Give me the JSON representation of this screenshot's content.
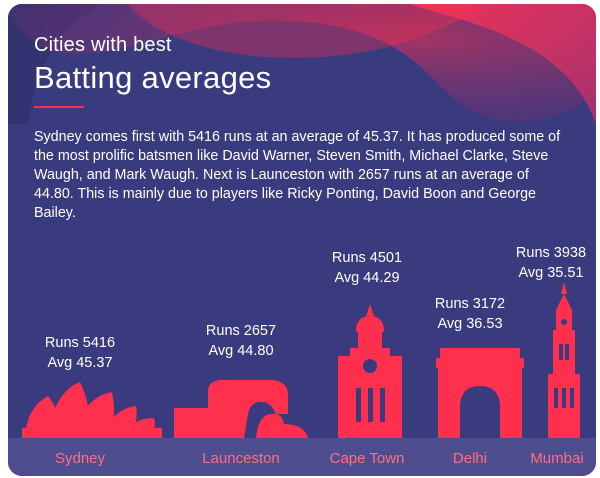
{
  "header": {
    "subtitle": "Cities with best",
    "title": "Batting averages"
  },
  "description": "Sydney comes first with 5416 runs at an average of 45.37. It has produced some of the most prolific batsmen like David Warner, Steven Smith, Michael Clarke, Steve Waugh, and Mark Waugh. Next is Launceston with 2657 runs at an average of 44.80. This is mainly due to players like Ricky Ponting, David Boon and George Bailey.",
  "colors": {
    "background": "#3a3a7e",
    "accent": "#ff2f4e",
    "ground": "#4d4d8f",
    "city_label": "#ff6f7d"
  },
  "chart_data": {
    "type": "bar",
    "title": "Batting averages",
    "categories": [
      "Sydney",
      "Launceston",
      "Cape Town",
      "Delhi",
      "Mumbai"
    ],
    "series": [
      {
        "name": "Runs",
        "values": [
          5416,
          2657,
          4501,
          3172,
          3938
        ]
      },
      {
        "name": "Avg",
        "values": [
          45.37,
          44.8,
          44.29,
          36.53,
          35.51
        ]
      }
    ],
    "labels": [
      {
        "runs": "Runs 5416",
        "avg": "Avg 45.37"
      },
      {
        "runs": "Runs 2657",
        "avg": "Avg 44.80"
      },
      {
        "runs": "Runs 4501",
        "avg": "Avg 44.29"
      },
      {
        "runs": "Runs 3172",
        "avg": "Avg 36.53"
      },
      {
        "runs": "Runs 3938",
        "avg": "Avg 35.51"
      }
    ],
    "icons": [
      "sydney-opera-house-icon",
      "launceston-landmark-icon",
      "cape-town-city-hall-icon",
      "india-gate-icon",
      "rajabai-clock-tower-icon"
    ]
  }
}
